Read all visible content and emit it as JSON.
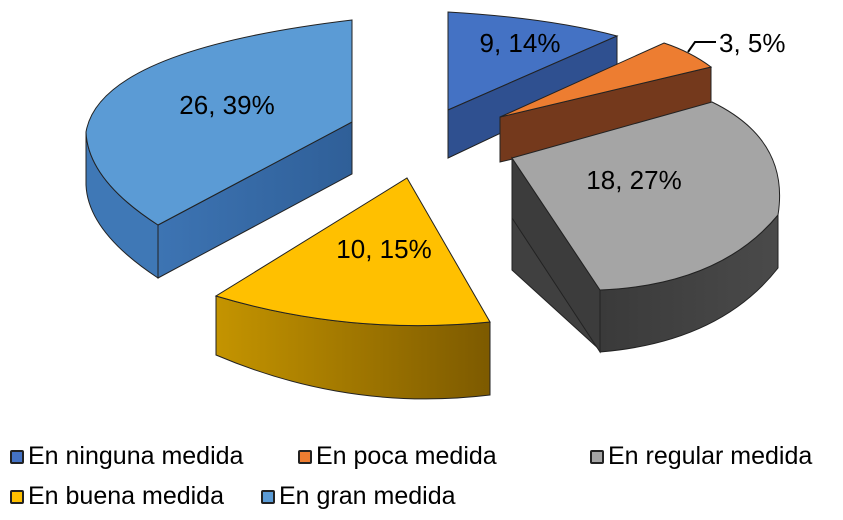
{
  "chart_data": {
    "type": "pie",
    "title": "",
    "series": [
      {
        "label": "En ninguna medida",
        "value": 9,
        "percent": "14%",
        "color": "#4472c4"
      },
      {
        "label": "En poca medida",
        "value": 3,
        "percent": "5%",
        "color": "#ed7d31"
      },
      {
        "label": "En regular medida",
        "value": 18,
        "percent": "27%",
        "color": "#a5a5a5"
      },
      {
        "label": "En buena medida",
        "value": 10,
        "percent": "15%",
        "color": "#ffc000"
      },
      {
        "label": "En gran medida",
        "value": 26,
        "percent": "39%",
        "color": "#5b9bd5"
      }
    ],
    "data_labels": [
      "9, 14%",
      "3, 5%",
      "18, 27%",
      "10, 15%",
      "26, 39%"
    ],
    "style": "3d-exploded",
    "legend_position": "bottom"
  }
}
